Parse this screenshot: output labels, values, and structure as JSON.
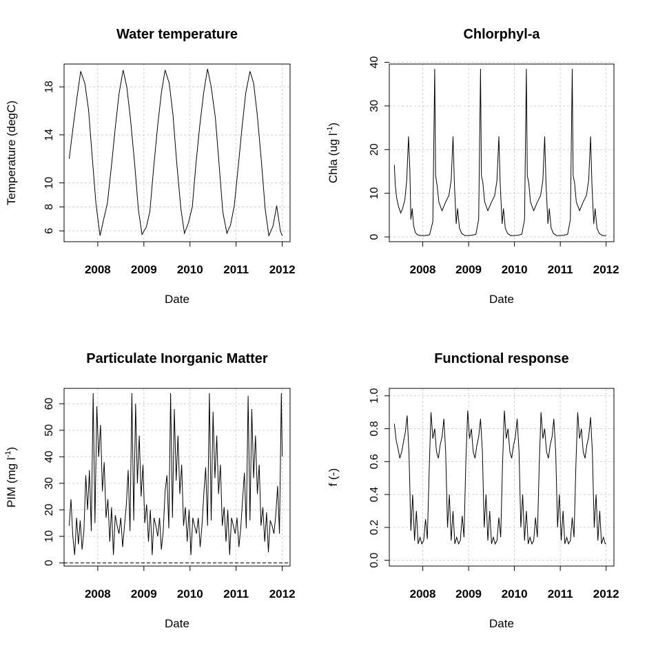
{
  "chart_data": [
    {
      "type": "line",
      "title": "Water temperature",
      "xlabel": "Date",
      "ylabel": "Temperature (degC)",
      "x_ticks": [
        "2008",
        "2009",
        "2010",
        "2011",
        "2012"
      ],
      "y_ticks": [
        6,
        8,
        10,
        14,
        18
      ],
      "xlim": [
        2007.27,
        2012.17
      ],
      "ylim": [
        5.1,
        19.9
      ],
      "grid": true,
      "x": [
        2007.38,
        2007.47,
        2007.55,
        2007.63,
        2007.72,
        2007.8,
        2007.88,
        2007.96,
        2008.05,
        2008.13,
        2008.21,
        2008.3,
        2008.38,
        2008.46,
        2008.55,
        2008.63,
        2008.71,
        2008.8,
        2008.88,
        2008.96,
        2009.05,
        2009.13,
        2009.21,
        2009.3,
        2009.38,
        2009.46,
        2009.55,
        2009.63,
        2009.71,
        2009.8,
        2009.88,
        2009.96,
        2010.05,
        2010.13,
        2010.21,
        2010.3,
        2010.38,
        2010.46,
        2010.55,
        2010.63,
        2010.71,
        2010.8,
        2010.88,
        2010.96,
        2011.05,
        2011.13,
        2011.21,
        2011.3,
        2011.38,
        2011.46,
        2011.55,
        2011.63,
        2011.71,
        2011.8,
        2011.88,
        2011.96,
        2012.0
      ],
      "values": [
        12.0,
        14.8,
        17.1,
        19.3,
        18.3,
        16.1,
        12.2,
        8.3,
        5.6,
        7.0,
        8.3,
        11.5,
        14.6,
        17.4,
        19.4,
        18.0,
        15.3,
        11.6,
        7.8,
        5.7,
        6.3,
        7.6,
        11.2,
        14.8,
        17.5,
        19.4,
        18.3,
        15.7,
        11.8,
        7.9,
        5.8,
        6.6,
        8.0,
        11.6,
        14.7,
        17.6,
        19.5,
        18.0,
        15.4,
        11.6,
        7.6,
        5.8,
        6.5,
        8.1,
        11.5,
        14.7,
        17.5,
        19.3,
        18.3,
        15.6,
        11.7,
        7.8,
        5.6,
        6.4,
        8.1,
        6.0,
        5.6
      ]
    },
    {
      "type": "line",
      "title": "Chlorphyl-a",
      "xlabel": "Date",
      "ylabel": "Chla  (ug l-1)",
      "x_ticks": [
        "2008",
        "2009",
        "2010",
        "2011",
        "2012"
      ],
      "y_ticks": [
        0,
        10,
        20,
        30,
        40
      ],
      "xlim": [
        2007.27,
        2012.17
      ],
      "ylim": [
        -1.1,
        39.6
      ],
      "grid": true,
      "x": [
        2007.38,
        2007.4,
        2007.43,
        2007.47,
        2007.52,
        2007.56,
        2007.61,
        2007.65,
        2007.69,
        2007.72,
        2007.74,
        2007.77,
        2007.8,
        2007.84,
        2007.88,
        2007.96,
        2008.05,
        2008.15,
        2008.22,
        2008.26,
        2008.28,
        2008.31,
        2008.35,
        2008.42,
        2008.5,
        2008.57,
        2008.62,
        2008.66,
        2008.69,
        2008.73,
        2008.76,
        2008.8,
        2008.85,
        2008.92,
        2009.0,
        2009.08,
        2009.16,
        2009.22,
        2009.26,
        2009.28,
        2009.31,
        2009.35,
        2009.42,
        2009.5,
        2009.57,
        2009.62,
        2009.66,
        2009.69,
        2009.73,
        2009.76,
        2009.8,
        2009.85,
        2009.92,
        2010.0,
        2010.08,
        2010.16,
        2010.22,
        2010.26,
        2010.28,
        2010.31,
        2010.35,
        2010.42,
        2010.5,
        2010.57,
        2010.62,
        2010.66,
        2010.69,
        2010.73,
        2010.76,
        2010.8,
        2010.85,
        2010.92,
        2011.0,
        2011.08,
        2011.16,
        2011.22,
        2011.26,
        2011.28,
        2011.31,
        2011.35,
        2011.42,
        2011.5,
        2011.57,
        2011.62,
        2011.66,
        2011.69,
        2011.73,
        2011.76,
        2011.8,
        2011.85,
        2011.92,
        2012.0
      ],
      "values": [
        16.5,
        12.0,
        9.0,
        7.0,
        5.5,
        6.5,
        8.5,
        13.0,
        23.0,
        15.0,
        4.0,
        6.5,
        2.5,
        1.0,
        0.5,
        0.3,
        0.3,
        0.5,
        3.5,
        38.5,
        14.0,
        12.0,
        8.0,
        6.0,
        8.0,
        9.5,
        13.0,
        23.0,
        12.0,
        3.0,
        6.5,
        2.0,
        0.8,
        0.3,
        0.3,
        0.4,
        0.6,
        4.0,
        38.5,
        14.0,
        12.5,
        8.0,
        6.0,
        8.0,
        9.5,
        13.0,
        23.0,
        12.0,
        3.0,
        6.5,
        2.0,
        0.8,
        0.3,
        0.3,
        0.4,
        0.6,
        4.0,
        38.5,
        14.0,
        12.5,
        8.0,
        6.0,
        8.0,
        9.5,
        13.0,
        23.0,
        12.0,
        3.0,
        6.5,
        2.0,
        0.8,
        0.3,
        0.3,
        0.4,
        0.6,
        4.0,
        38.5,
        14.0,
        12.5,
        8.0,
        6.0,
        8.0,
        9.5,
        13.0,
        23.0,
        12.0,
        3.0,
        6.5,
        2.0,
        0.8,
        0.3,
        0.3
      ]
    },
    {
      "type": "line",
      "title": "Particulate Inorganic Matter",
      "xlabel": "Date",
      "ylabel": "PIM  (mg l-1)",
      "x_ticks": [
        "2008",
        "2009",
        "2010",
        "2011",
        "2012"
      ],
      "y_ticks": [
        0,
        10,
        20,
        30,
        40,
        50,
        60
      ],
      "xlim": [
        2007.27,
        2012.17
      ],
      "ylim": [
        -1.2,
        65.8
      ],
      "grid": true,
      "x": [
        2007.38,
        2007.42,
        2007.46,
        2007.5,
        2007.54,
        2007.58,
        2007.62,
        2007.66,
        2007.7,
        2007.74,
        2007.78,
        2007.82,
        2007.86,
        2007.9,
        2007.94,
        2007.98,
        2008.02,
        2008.06,
        2008.1,
        2008.14,
        2008.18,
        2008.22,
        2008.26,
        2008.3,
        2008.34,
        2008.38,
        2008.42,
        2008.46,
        2008.5,
        2008.54,
        2008.58,
        2008.62,
        2008.66,
        2008.7,
        2008.74,
        2008.78,
        2008.82,
        2008.86,
        2008.9,
        2008.94,
        2008.98,
        2009.02,
        2009.06,
        2009.1,
        2009.14,
        2009.18,
        2009.22,
        2009.26,
        2009.3,
        2009.34,
        2009.38,
        2009.42,
        2009.46,
        2009.5,
        2009.54,
        2009.58,
        2009.62,
        2009.66,
        2009.7,
        2009.74,
        2009.78,
        2009.82,
        2009.86,
        2009.9,
        2009.94,
        2009.98,
        2010.02,
        2010.06,
        2010.1,
        2010.14,
        2010.18,
        2010.22,
        2010.26,
        2010.3,
        2010.34,
        2010.38,
        2010.42,
        2010.46,
        2010.5,
        2010.54,
        2010.58,
        2010.62,
        2010.66,
        2010.7,
        2010.74,
        2010.78,
        2010.82,
        2010.86,
        2010.9,
        2010.94,
        2010.98,
        2011.02,
        2011.06,
        2011.1,
        2011.14,
        2011.18,
        2011.22,
        2011.26,
        2011.3,
        2011.34,
        2011.38,
        2011.42,
        2011.46,
        2011.5,
        2011.54,
        2011.58,
        2011.62,
        2011.66,
        2011.7,
        2011.74,
        2011.78,
        2011.82,
        2011.86,
        2011.9,
        2011.94,
        2011.98,
        2012.0
      ],
      "values": [
        14,
        24,
        10,
        3,
        17,
        7,
        16,
        5,
        12,
        33,
        20,
        35,
        12,
        64,
        15,
        59,
        40,
        52,
        27,
        38,
        17,
        24,
        8,
        21,
        3,
        18,
        14,
        11,
        17,
        6,
        14,
        22,
        35,
        12,
        64,
        16,
        60,
        30,
        48,
        25,
        37,
        15,
        22,
        8,
        20,
        3,
        17,
        14,
        10,
        17,
        5,
        12,
        27,
        33,
        13,
        64,
        17,
        58,
        31,
        48,
        26,
        37,
        14,
        21,
        8,
        20,
        3,
        17,
        14,
        11,
        17,
        6,
        14,
        26,
        36,
        14,
        64,
        16,
        57,
        32,
        48,
        26,
        37,
        14,
        21,
        8,
        20,
        3,
        17,
        14,
        11,
        17,
        6,
        13,
        24,
        34,
        13,
        63,
        16,
        58,
        32,
        48,
        26,
        37,
        14,
        21,
        8,
        19,
        4,
        16,
        14,
        11,
        18,
        29,
        11,
        64,
        40
      ]
    },
    {
      "type": "line",
      "title": "Functional response",
      "xlabel": "Date",
      "ylabel": "f (-)",
      "x_ticks": [
        "2008",
        "2009",
        "2010",
        "2011",
        "2012"
      ],
      "y_ticks": [
        0.0,
        0.2,
        0.4,
        0.6,
        0.8,
        1.0
      ],
      "xlim": [
        2007.27,
        2012.17
      ],
      "ylim": [
        -0.035,
        1.045
      ],
      "grid": true,
      "x": [
        2007.38,
        2007.42,
        2007.46,
        2007.5,
        2007.54,
        2007.58,
        2007.62,
        2007.66,
        2007.7,
        2007.74,
        2007.78,
        2007.82,
        2007.86,
        2007.9,
        2007.94,
        2007.98,
        2008.02,
        2008.06,
        2008.1,
        2008.14,
        2008.18,
        2008.22,
        2008.26,
        2008.3,
        2008.34,
        2008.38,
        2008.42,
        2008.46,
        2008.5,
        2008.54,
        2008.58,
        2008.62,
        2008.66,
        2008.7,
        2008.74,
        2008.78,
        2008.82,
        2008.86,
        2008.9,
        2008.94,
        2008.98,
        2009.02,
        2009.06,
        2009.1,
        2009.14,
        2009.18,
        2009.22,
        2009.26,
        2009.3,
        2009.34,
        2009.38,
        2009.42,
        2009.46,
        2009.5,
        2009.54,
        2009.58,
        2009.62,
        2009.66,
        2009.7,
        2009.74,
        2009.78,
        2009.82,
        2009.86,
        2009.9,
        2009.94,
        2009.98,
        2010.02,
        2010.06,
        2010.1,
        2010.14,
        2010.18,
        2010.22,
        2010.26,
        2010.3,
        2010.34,
        2010.38,
        2010.42,
        2010.46,
        2010.5,
        2010.54,
        2010.58,
        2010.62,
        2010.66,
        2010.7,
        2010.74,
        2010.78,
        2010.82,
        2010.86,
        2010.9,
        2010.94,
        2010.98,
        2011.02,
        2011.06,
        2011.1,
        2011.14,
        2011.18,
        2011.22,
        2011.26,
        2011.3,
        2011.34,
        2011.38,
        2011.42,
        2011.46,
        2011.5,
        2011.54,
        2011.58,
        2011.62,
        2011.66,
        2011.7,
        2011.74,
        2011.78,
        2011.82,
        2011.86,
        2011.9,
        2011.94,
        2011.98,
        2012.0
      ],
      "values": [
        0.83,
        0.73,
        0.68,
        0.62,
        0.66,
        0.72,
        0.78,
        0.88,
        0.65,
        0.18,
        0.4,
        0.12,
        0.3,
        0.1,
        0.14,
        0.1,
        0.12,
        0.25,
        0.13,
        0.55,
        0.9,
        0.74,
        0.8,
        0.66,
        0.62,
        0.7,
        0.75,
        0.86,
        0.66,
        0.2,
        0.4,
        0.12,
        0.3,
        0.1,
        0.14,
        0.1,
        0.12,
        0.27,
        0.14,
        0.6,
        0.91,
        0.74,
        0.8,
        0.66,
        0.62,
        0.7,
        0.75,
        0.86,
        0.66,
        0.2,
        0.4,
        0.12,
        0.3,
        0.1,
        0.14,
        0.1,
        0.12,
        0.26,
        0.14,
        0.58,
        0.91,
        0.74,
        0.8,
        0.66,
        0.62,
        0.7,
        0.75,
        0.86,
        0.66,
        0.2,
        0.4,
        0.12,
        0.3,
        0.1,
        0.14,
        0.1,
        0.12,
        0.26,
        0.14,
        0.58,
        0.9,
        0.74,
        0.8,
        0.66,
        0.62,
        0.7,
        0.75,
        0.86,
        0.66,
        0.2,
        0.4,
        0.12,
        0.3,
        0.1,
        0.14,
        0.1,
        0.12,
        0.26,
        0.14,
        0.58,
        0.9,
        0.74,
        0.8,
        0.66,
        0.62,
        0.7,
        0.75,
        0.87,
        0.66,
        0.2,
        0.4,
        0.12,
        0.3,
        0.1,
        0.14,
        0.1,
        0.1
      ]
    }
  ]
}
